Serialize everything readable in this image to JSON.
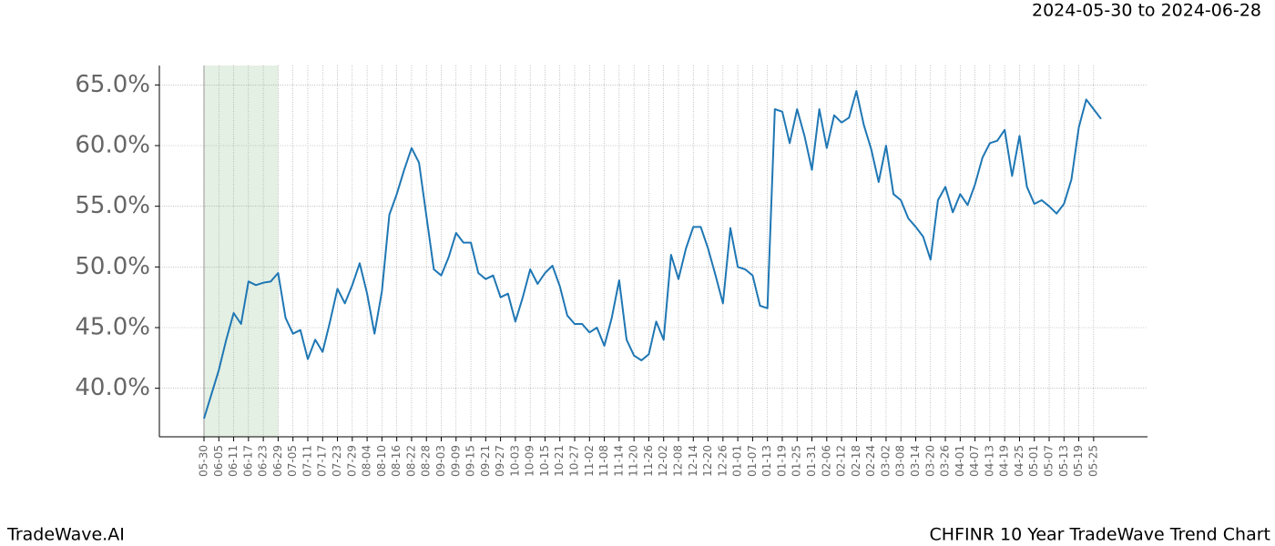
{
  "chart_data": {
    "type": "line",
    "title": "CHFINR 10 Year TradeWave Trend Chart",
    "subtitle": "2024-05-30 to 2024-06-28",
    "source": "TradeWave.AI",
    "color": "#1f77b4",
    "grid": true,
    "highlight": [
      "05-30",
      "06-29"
    ],
    "highlight_color": "#d9ead9",
    "categories": [
      "05-30",
      null,
      "06-05",
      null,
      "06-11",
      null,
      "06-17",
      null,
      "06-23",
      null,
      "06-29",
      null,
      "07-05",
      null,
      "07-11",
      null,
      "07-17",
      null,
      "07-23",
      null,
      "07-29",
      null,
      "08-04",
      null,
      "08-10",
      null,
      "08-16",
      null,
      "08-22",
      null,
      "08-28",
      null,
      "09-03",
      null,
      "09-09",
      null,
      "09-15",
      null,
      "09-21",
      null,
      "09-27",
      null,
      "10-03",
      null,
      "10-09",
      null,
      "10-15",
      null,
      "10-21",
      null,
      "10-27",
      null,
      "11-02",
      null,
      "11-08",
      null,
      "11-14",
      null,
      "11-20",
      null,
      "11-26",
      null,
      "12-02",
      null,
      "12-08",
      null,
      "12-14",
      null,
      "12-20",
      null,
      "12-26",
      null,
      "01-01",
      null,
      "01-07",
      null,
      "01-13",
      null,
      "01-19",
      null,
      "01-25",
      null,
      "01-31",
      null,
      "02-06",
      null,
      "02-12",
      null,
      "02-18",
      null,
      "02-24",
      null,
      "03-02",
      null,
      "03-08",
      null,
      "03-14",
      null,
      "03-20",
      null,
      "03-26",
      null,
      "04-01",
      null,
      "04-07",
      null,
      "04-13",
      null,
      "04-19",
      null,
      "04-25",
      null,
      "05-01",
      null,
      "05-07",
      null,
      "05-13",
      null,
      "05-19",
      null,
      "05-25",
      null
    ],
    "values": [
      37.5,
      39.5,
      41.5,
      44,
      46.2,
      45.3,
      48.8,
      48.5,
      48.7,
      48.8,
      49.5,
      45.8,
      44.5,
      44.8,
      42.4,
      44,
      43,
      45.5,
      48.2,
      47,
      48.5,
      50.3,
      47.8,
      44.5,
      48,
      54.3,
      56,
      58,
      59.8,
      58.6,
      54.2,
      49.8,
      49.3,
      50.8,
      52.8,
      52,
      52,
      49.5,
      49,
      49.3,
      47.5,
      47.8,
      45.5,
      47.5,
      49.8,
      48.6,
      49.5,
      50.1,
      48.4,
      46,
      45.3,
      45.3,
      44.6,
      45,
      43.5,
      45.8,
      48.9,
      44,
      42.7,
      42.3,
      42.8,
      45.5,
      44,
      51,
      49,
      51.5,
      53.3,
      53.3,
      51.5,
      49.3,
      47,
      53.2,
      50,
      49.8,
      49.3,
      46.8,
      46.6,
      63,
      62.8,
      60.2,
      63,
      60.8,
      58,
      63,
      59.8,
      62.5,
      61.9,
      62.3,
      64.5,
      61.7,
      59.7,
      57,
      60,
      56,
      55.5,
      54,
      53.3,
      52.5,
      50.6,
      55.5,
      56.6,
      54.5,
      56,
      55.1,
      56.8,
      59,
      60.2,
      60.4,
      61.3,
      57.5,
      60.8,
      56.6,
      55.2,
      55.5,
      55,
      54.4,
      55.2,
      57.2,
      61.5,
      63.8,
      63,
      62.2
    ],
    "ylim": [
      36.0,
      66.6
    ],
    "yticks": [
      {
        "value": 40,
        "label": "40.0%"
      },
      {
        "value": 45,
        "label": "45.0%"
      },
      {
        "value": 50,
        "label": "50.0%"
      },
      {
        "value": 55,
        "label": "55.0%"
      },
      {
        "value": 60,
        "label": "60.0%"
      },
      {
        "value": 65,
        "label": "65.0%"
      }
    ]
  }
}
